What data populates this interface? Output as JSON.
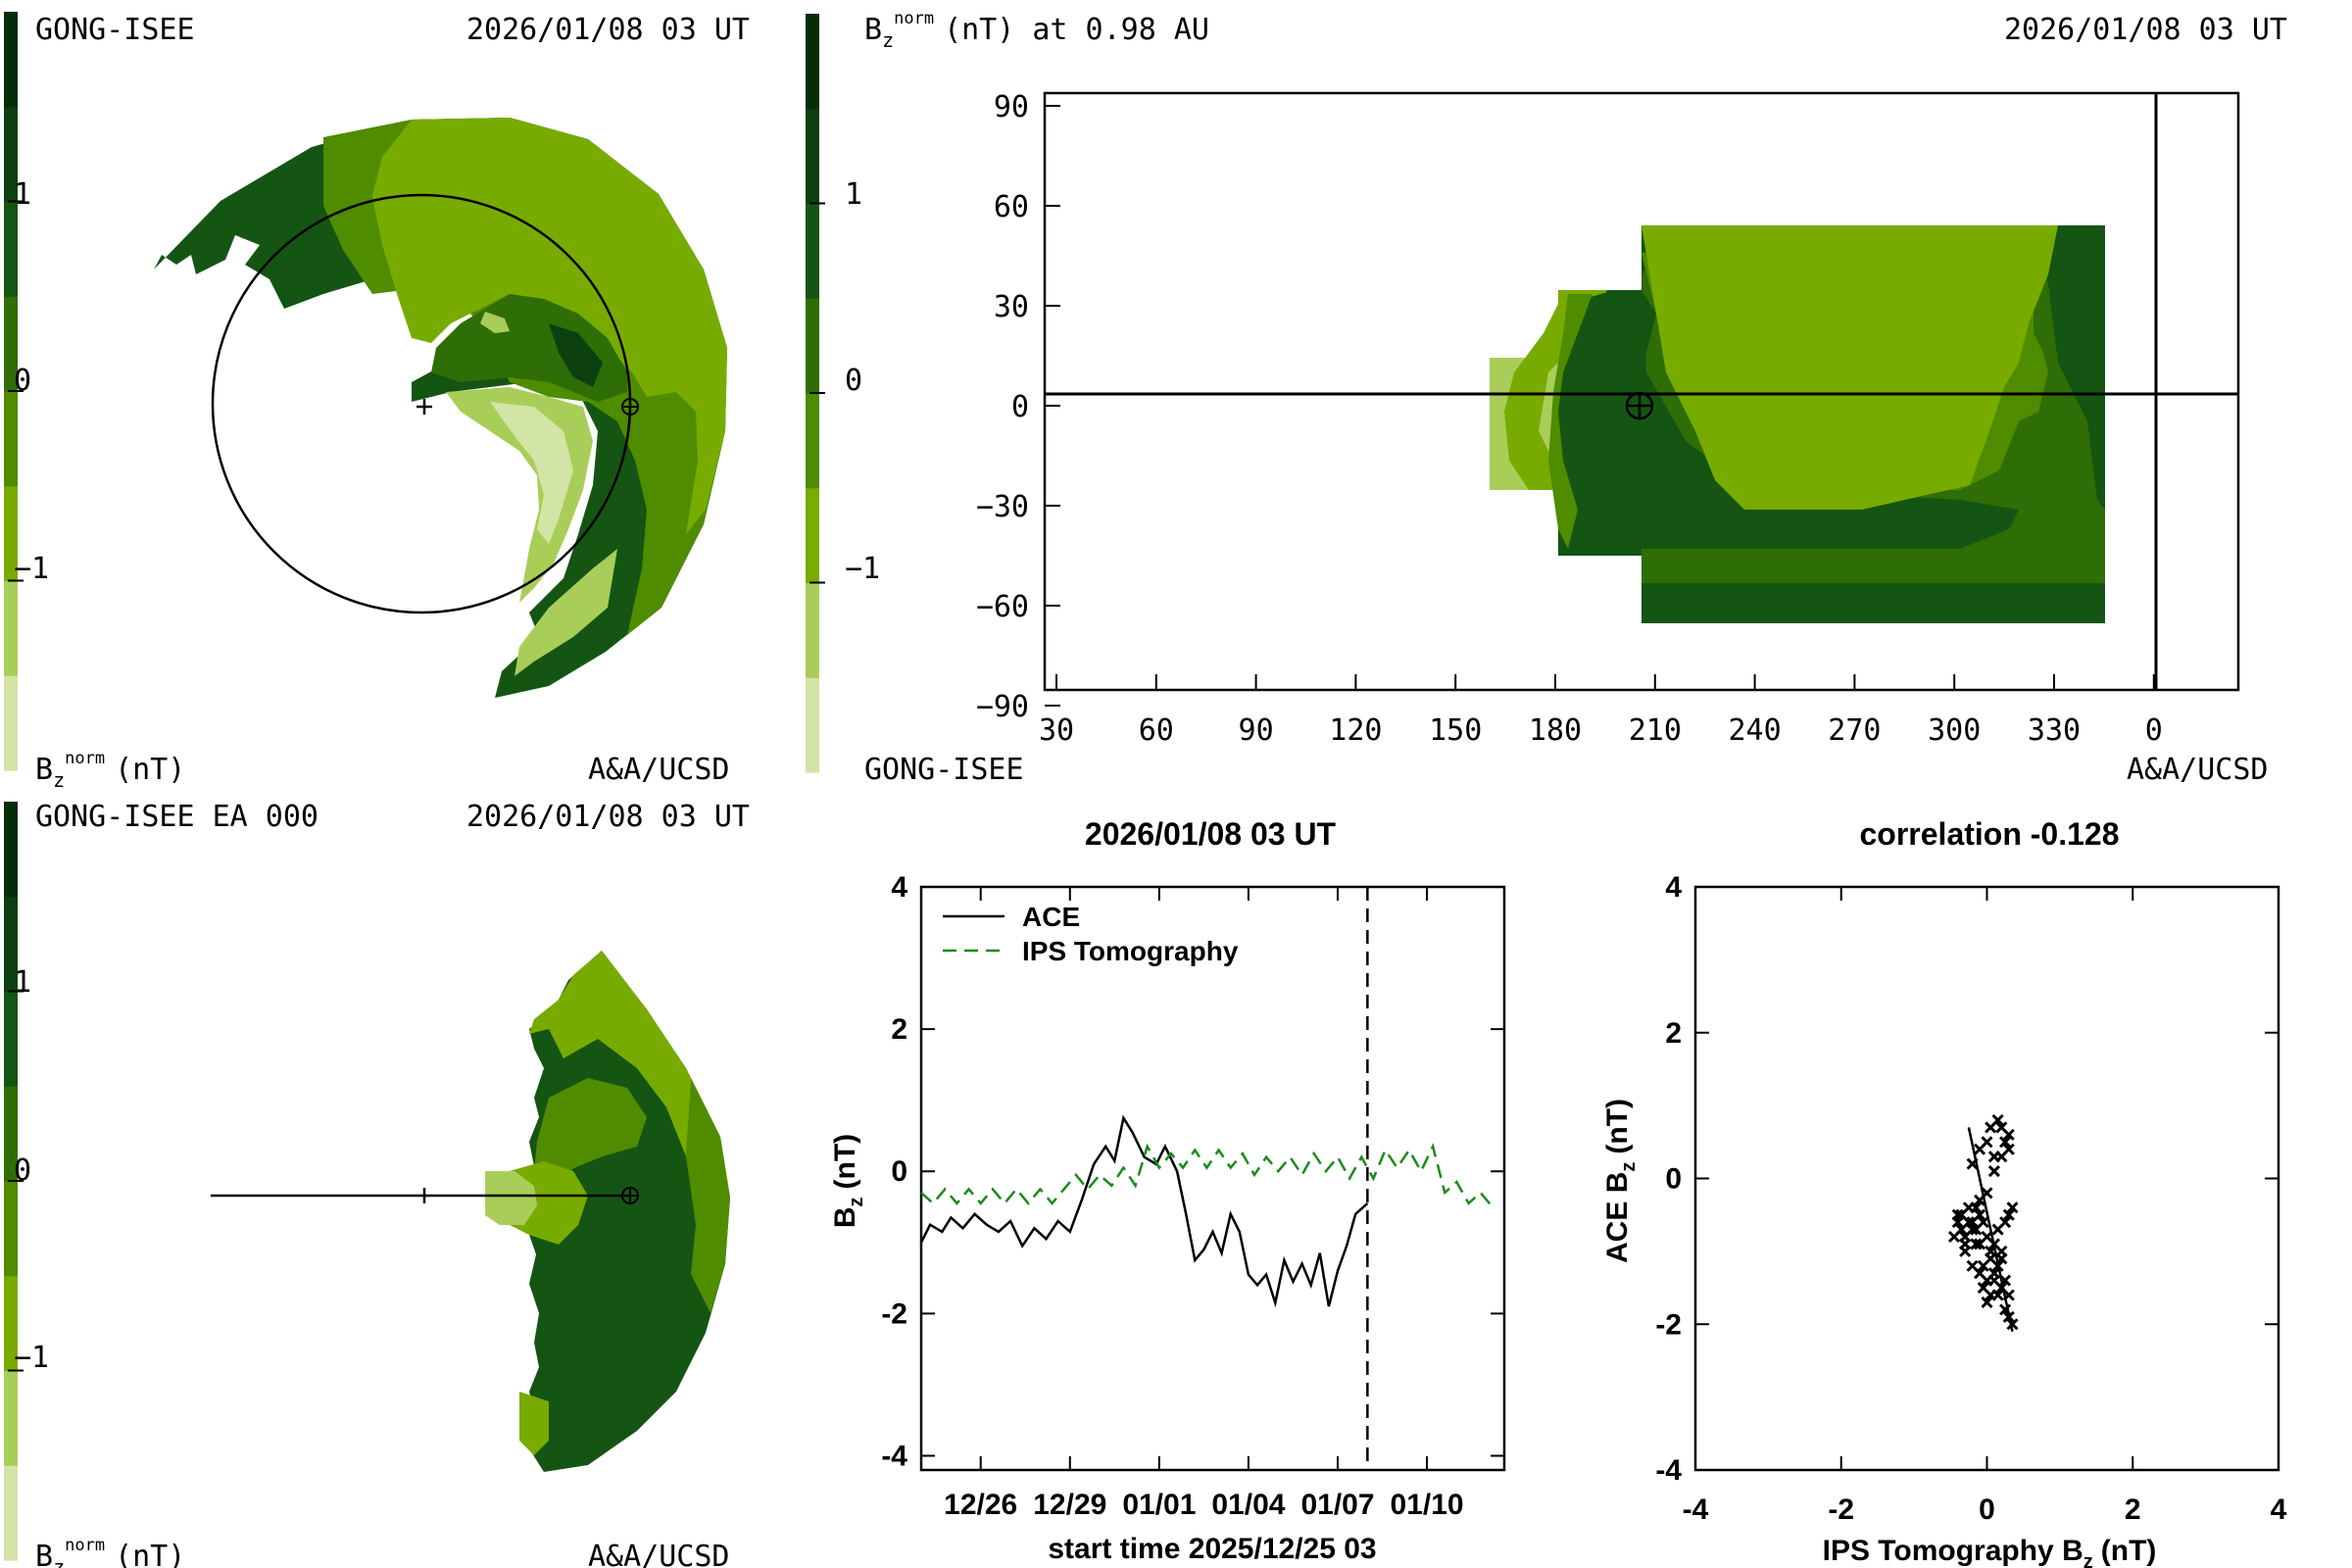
{
  "colors": {
    "scale": [
      "#d2e4a6",
      "#a9cd59",
      "#78ab00",
      "#4f8c00",
      "#2f6e06",
      "#145514",
      "#0c4011",
      "#052d08"
    ],
    "line": "#000000",
    "ips": "#1a8c1a"
  },
  "panel_tl": {
    "source": "GONG-ISEE",
    "date": "2026/01/08 03 UT",
    "quantity_main": "B",
    "quantity_sub": "z",
    "quantity_sup": "norm",
    "unit": "(nT)",
    "credit": "A&A/UCSD",
    "ticks": [
      "1",
      "0",
      "−1"
    ]
  },
  "panel_tr": {
    "quantity_main": "B",
    "quantity_sub": "z",
    "quantity_sup": "norm",
    "unit": "(nT) at 0.98 AU",
    "date": "2026/01/08 03 UT",
    "source": "GONG-ISEE",
    "credit": "A&A/UCSD",
    "ticks": [
      "1",
      "0",
      "−1"
    ],
    "yticks": [
      "90",
      "60",
      "30",
      "0",
      "−30",
      "−60",
      "−90"
    ],
    "xticks": [
      "30",
      "60",
      "90",
      "120",
      "150",
      "180",
      "210",
      "240",
      "270",
      "300",
      "330",
      "0"
    ]
  },
  "panel_bl": {
    "source": "GONG-ISEE EA 000",
    "date": "2026/01/08 03 UT",
    "quantity_main": "B",
    "quantity_sub": "z",
    "quantity_sup": "norm",
    "unit": "(nT)",
    "credit": "A&A/UCSD",
    "ticks": [
      "1",
      "0",
      "−1"
    ]
  },
  "chart_data": [
    {
      "type": "line",
      "title": "2026/01/08 03 UT",
      "xlabel": "start time 2025/12/25 03",
      "ylabel_main": "B",
      "ylabel_sub": "z",
      "ylabel_unit": "(nT)",
      "xtick_labels": [
        "12/26",
        "12/29",
        "01/01",
        "01/04",
        "01/07",
        "01/10"
      ],
      "xtick_values": [
        1,
        4,
        7,
        10,
        13,
        16
      ],
      "xlim": [
        -1,
        18.6
      ],
      "ylim": [
        -4.2,
        4
      ],
      "yticks": [
        4,
        2,
        0,
        -2,
        -4
      ],
      "now_marker": 14,
      "series": [
        {
          "name": "ACE",
          "x": [
            -1,
            -0.7,
            -0.3,
            0,
            0.4,
            0.8,
            1.2,
            1.6,
            2,
            2.4,
            2.8,
            3.2,
            3.6,
            4,
            4.4,
            4.8,
            5.2,
            5.5,
            5.8,
            6.1,
            6.5,
            6.9,
            7.2,
            7.6,
            7.9,
            8.2,
            8.5,
            8.8,
            9.1,
            9.4,
            9.7,
            10,
            10.3,
            10.6,
            10.9,
            11.2,
            11.5,
            11.8,
            12.1,
            12.4,
            12.7,
            13,
            13.3,
            13.6,
            14
          ],
          "y": [
            -1,
            -0.75,
            -0.85,
            -0.65,
            -0.8,
            -0.6,
            -0.75,
            -0.85,
            -0.7,
            -1.05,
            -0.8,
            -0.95,
            -0.7,
            -0.85,
            -0.4,
            0.1,
            0.35,
            0.15,
            0.75,
            0.55,
            0.2,
            0.1,
            0.35,
            0.0,
            -0.6,
            -1.25,
            -1.1,
            -0.85,
            -1.15,
            -0.6,
            -0.85,
            -1.45,
            -1.6,
            -1.45,
            -1.85,
            -1.25,
            -1.55,
            -1.3,
            -1.6,
            -1.15,
            -1.9,
            -1.4,
            -1.05,
            -0.6,
            -0.45
          ]
        },
        {
          "name": "IPS Tomography",
          "x": [
            -1,
            -0.6,
            -0.2,
            0.2,
            0.6,
            1.0,
            1.4,
            1.8,
            2.2,
            2.6,
            3.0,
            3.4,
            3.8,
            4.2,
            4.6,
            5.0,
            5.4,
            5.8,
            6.2,
            6.6,
            7.0,
            7.4,
            7.8,
            8.2,
            8.6,
            9.0,
            9.4,
            9.8,
            10.2,
            10.6,
            11.0,
            11.4,
            11.8,
            12.2,
            12.6,
            13.0,
            13.4,
            13.8,
            14.2,
            14.6,
            15.0,
            15.4,
            15.8,
            16.2,
            16.6,
            17.0,
            17.4,
            17.8,
            18.2
          ],
          "y": [
            -0.3,
            -0.45,
            -0.25,
            -0.45,
            -0.25,
            -0.45,
            -0.25,
            -0.45,
            -0.25,
            -0.45,
            -0.25,
            -0.45,
            -0.25,
            -0.05,
            -0.25,
            -0.05,
            -0.2,
            0.05,
            -0.2,
            0.35,
            0.05,
            0.25,
            0.05,
            0.3,
            0.05,
            0.3,
            0.05,
            0.25,
            -0.05,
            0.2,
            0.0,
            0.2,
            -0.05,
            0.25,
            0.0,
            0.2,
            -0.1,
            0.2,
            -0.1,
            0.3,
            0.05,
            0.3,
            0.0,
            0.35,
            -0.3,
            -0.15,
            -0.45,
            -0.3,
            -0.5
          ]
        }
      ]
    },
    {
      "type": "scatter",
      "title": "correlation -0.128",
      "xlabel_main": "IPS Tomography B",
      "xlabel_sub": "z",
      "xlabel_unit": "(nT)",
      "ylabel_main": "ACE B",
      "ylabel_sub": "z",
      "ylabel_unit": "(nT)",
      "xlim": [
        -4,
        4
      ],
      "ylim": [
        -4,
        4
      ],
      "xticks": [
        -4,
        -2,
        0,
        2,
        4
      ],
      "yticks": [
        4,
        2,
        0,
        -2,
        -4
      ],
      "fit_line": [
        [
          -0.25,
          0.7
        ],
        [
          0.35,
          -2.1
        ]
      ],
      "points": {
        "x": [
          -0.4,
          -0.3,
          -0.35,
          -0.2,
          -0.15,
          -0.3,
          -0.25,
          -0.1,
          -0.05,
          0.0,
          0.05,
          -0.1,
          -0.2,
          0.1,
          0.15,
          0.2,
          0.25,
          0.3,
          0.35,
          0.05,
          0.0,
          -0.05,
          0.1,
          0.2,
          0.15,
          0.3,
          0.25,
          0.35,
          -0.35,
          -0.4,
          -0.45,
          -0.3,
          -0.25,
          -0.15,
          -0.1,
          0.0,
          0.1,
          0.2,
          0.25,
          0.3,
          -0.2,
          -0.1,
          0.05,
          0.15,
          0.2,
          0.3,
          -0.05,
          0.0,
          0.1,
          0.2,
          -0.3,
          -0.2,
          -0.1,
          0.05,
          0.15,
          0.25,
          0.3,
          0.1,
          0.0,
          -0.15
        ],
        "y": [
          -0.6,
          -0.8,
          -0.5,
          -0.7,
          -0.9,
          -1.0,
          -0.4,
          -0.3,
          -0.6,
          -0.8,
          -1.1,
          -1.3,
          -1.2,
          -1.4,
          -1.6,
          -1.5,
          -1.8,
          -1.9,
          -2.0,
          -1.6,
          -1.7,
          -1.5,
          -0.9,
          -1.0,
          -0.7,
          -0.5,
          -0.6,
          -0.4,
          -0.7,
          -0.5,
          -0.8,
          -0.9,
          -0.6,
          -0.7,
          -0.5,
          -0.2,
          0.1,
          0.3,
          0.5,
          0.6,
          0.2,
          0.4,
          0.7,
          0.8,
          0.7,
          0.4,
          -1.2,
          -1.4,
          -1.3,
          -1.1,
          -0.8,
          -0.6,
          -0.9,
          -1.0,
          -1.2,
          -1.4,
          -1.6,
          0.3,
          0.5,
          -0.4
        ]
      }
    }
  ]
}
